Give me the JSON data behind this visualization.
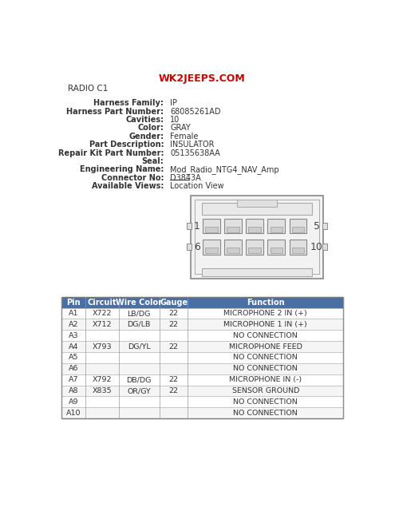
{
  "title": "WK2JEEPS.COM",
  "radio_label": "RADIO C1",
  "info_labels": [
    "Harness Family:",
    "Harness Part Number:",
    "Cavities:",
    "Color:",
    "Gender:",
    "Part Description:",
    "Repair Kit Part Number:",
    "Seal:",
    "Engineering Name:",
    "Connector No:",
    "Available Views:"
  ],
  "info_values": [
    "IP",
    "68085261AD",
    "10",
    "GRAY",
    "Female",
    "INSULATOR",
    "05135638AA",
    "",
    "Mod_Radio_NTG4_NAV_Amp",
    "D3843A",
    "Location View"
  ],
  "table_header": [
    "Pin",
    "Circuit",
    "Wire Color",
    "Gauge",
    "Function"
  ],
  "table_rows": [
    [
      "A1",
      "X722",
      "LB/DG",
      "22",
      "MICROPHONE 2 IN (+)"
    ],
    [
      "A2",
      "X712",
      "DG/LB",
      "22",
      "MICROPHONE 1 IN (+)"
    ],
    [
      "A3",
      "",
      "",
      "",
      "NO CONNECTION"
    ],
    [
      "A4",
      "X793",
      "DG/YL",
      "22",
      "MICROPHONE FEED"
    ],
    [
      "A5",
      "",
      "",
      "",
      "NO CONNECTION"
    ],
    [
      "A6",
      "",
      "",
      "",
      "NO CONNECTION"
    ],
    [
      "A7",
      "X792",
      "DB/DG",
      "22",
      "MICROPHONE IN (-)"
    ],
    [
      "A8",
      "X835",
      "OR/GY",
      "22",
      "SENSOR GROUND"
    ],
    [
      "A9",
      "",
      "",
      "",
      "NO CONNECTION"
    ],
    [
      "A10",
      "",
      "",
      "",
      "NO CONNECTION"
    ]
  ],
  "header_bg": "#4a6fa5",
  "header_fg": "#ffffff",
  "row_alt_bg": "#f5f5f5",
  "row_bg": "#ffffff",
  "title_color": "#cc0000",
  "text_color": "#333333",
  "background_color": "#ffffff",
  "conn_numbers": [
    "1",
    "5",
    "6",
    "10"
  ]
}
